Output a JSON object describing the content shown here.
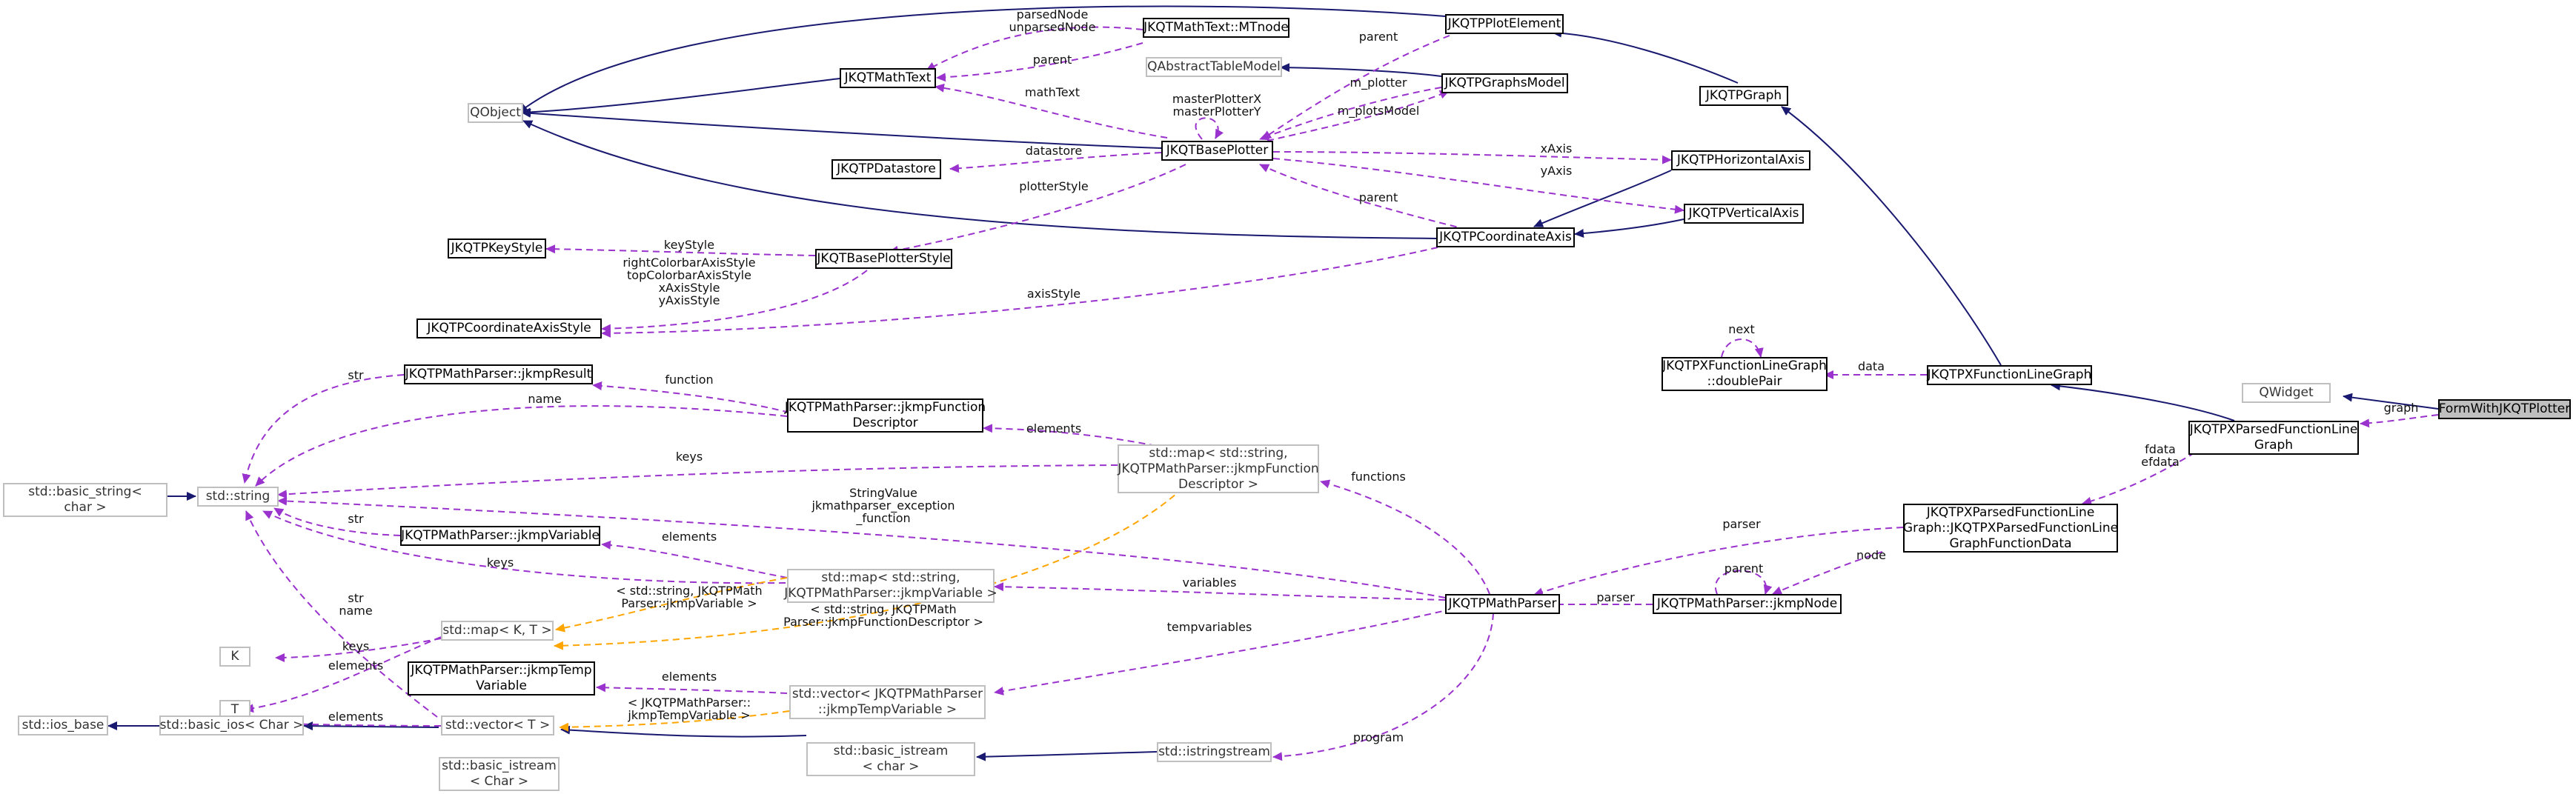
{
  "nodes": {
    "form_with_jkqtplotter": [
      "FormWithJKQTPlotter"
    ],
    "qwidget": [
      "QWidget"
    ],
    "jkqtpxparsed_function_line_graph": [
      "JKQTPXParsedFunctionLine",
      "Graph"
    ],
    "jkqtpxfunction_line_graph": [
      "JKQTPXFunctionLineGraph"
    ],
    "jkqtpgraph": [
      "JKQTPGraph"
    ],
    "jkqtpplot_element": [
      "JKQTPPlotElement"
    ],
    "qobject": [
      "QObject"
    ],
    "jkqtmathtext_mtnode": [
      "JKQTMathText::MTnode"
    ],
    "jkqtmathtext": [
      "JKQTMathText"
    ],
    "qabstract_table_model": [
      "QAbstractTableModel"
    ],
    "jkqtpgraphs_model": [
      "JKQTPGraphsModel"
    ],
    "jkqtbase_plotter": [
      "JKQTBasePlotter"
    ],
    "jkqtpdatastore": [
      "JKQTPDatastore"
    ],
    "jkqtphorizontal_axis": [
      "JKQTPHorizontalAxis"
    ],
    "jkqtpvertical_axis": [
      "JKQTPVerticalAxis"
    ],
    "jkqtpcoordinate_axis": [
      "JKQTPCoordinateAxis"
    ],
    "jkqtpkey_style": [
      "JKQTPKeyStyle"
    ],
    "jkqtbase_plotter_style": [
      "JKQTBasePlotterStyle"
    ],
    "jkqtpcoordinate_axis_style": [
      "JKQTPCoordinateAxisStyle"
    ],
    "double_pair": [
      "JKQTPXFunctionLineGraph",
      "::doublePair"
    ],
    "jkmp_result": [
      "JKQTPMathParser::jkmpResult"
    ],
    "jkmp_function_descriptor": [
      "JKQTPMathParser::jkmpFunction",
      "Descriptor"
    ],
    "std_basic_string": [
      "std::basic_string<",
      "char >"
    ],
    "std_string": [
      "std::string"
    ],
    "map_function_descriptor": [
      "std::map< std::string,",
      "JKQTPMathParser::jkmpFunction",
      "Descriptor >"
    ],
    "jkmp_variable": [
      "JKQTPMathParser::jkmpVariable"
    ],
    "map_jkmp_variable": [
      "std::map< std::string,",
      "JKQTPMathParser::jkmpVariable >"
    ],
    "jkqtpmath_parser": [
      "JKQTPMathParser"
    ],
    "jkmp_node": [
      "JKQTPMathParser::jkmpNode"
    ],
    "graph_function_data": [
      "JKQTPXParsedFunctionLine",
      "Graph::JKQTPXParsedFunctionLine",
      "GraphFunctionData"
    ],
    "std_map_k_t": [
      "std::map< K, T >"
    ],
    "k": [
      "K"
    ],
    "t": [
      "T"
    ],
    "jkmp_temp_variable": [
      "JKQTPMathParser::jkmpTemp",
      "Variable"
    ],
    "std_vector_t": [
      "std::vector< T >"
    ],
    "vector_jkmp_temp_variable": [
      "std::vector< JKQTPMathParser",
      "::jkmpTempVariable >"
    ],
    "std_ios_base": [
      "std::ios_base"
    ],
    "std_basic_ios": [
      "std::basic_ios< Char >"
    ],
    "std_basic_istream_char": [
      "std::basic_istream",
      "< Char >"
    ],
    "std_basic_istream_char_lc": [
      "std::basic_istream",
      "< char >"
    ],
    "std_istringstream": [
      "std::istringstream"
    ]
  },
  "edge_labels": {
    "graph": "graph",
    "fdata_efdata": "fdata\nefdata",
    "data": "data",
    "next": "next",
    "parent_plot": "parent",
    "parsed_node": "parsedNode\nunparsedNode",
    "parent_mathtext": "parent",
    "mathtext": "mathText",
    "master_plotter": "masterPlotterX\nmasterPlotterY",
    "m_plotter": "m_plotter",
    "m_plots_model": "m_plotsModel",
    "datastore": "datastore",
    "x_axis": "xAxis",
    "y_axis": "yAxis",
    "parent_axis": "parent",
    "plotter_style": "plotterStyle",
    "key_style": "keyStyle",
    "axis_styles": "rightColorbarAxisStyle\ntopColorbarAxisStyle\nxAxisStyle\nyAxisStyle",
    "axis_style": "axisStyle",
    "str_result": "str",
    "function": "function",
    "name": "name",
    "keys_function": "keys",
    "elements_function": "elements",
    "functions": "functions",
    "string_value": "StringValue\njkmathparser_exception\n_function",
    "str_variable": "str",
    "elements_variable": "elements",
    "keys_variable": "keys",
    "variables": "variables",
    "parser_node": "parser",
    "parser_data": "parser",
    "parent_node": "parent",
    "node": "node",
    "tmpl_variable": "< std::string, JKQTPMath\nParser::jkmpVariable >",
    "tmpl_function": "< std::string, JKQTPMath\nParser::jkmpFunctionDescriptor >",
    "str_name": "str\nname",
    "keys_k": "keys",
    "elements_t": "elements",
    "temp_variables": "tempvariables",
    "elements_temp": "elements",
    "tmpl_temp": "< JKQTPMathParser::\njkmpTempVariable >",
    "elements_vector_t": "elements",
    "program": "program"
  },
  "colors": {
    "inheritance": "#191970",
    "usage": "#9a32cd",
    "template": "#ffa500",
    "node_border": "#000000",
    "node_border_external": "#bfbfbf",
    "focus_fill": "#bfbfbf"
  }
}
